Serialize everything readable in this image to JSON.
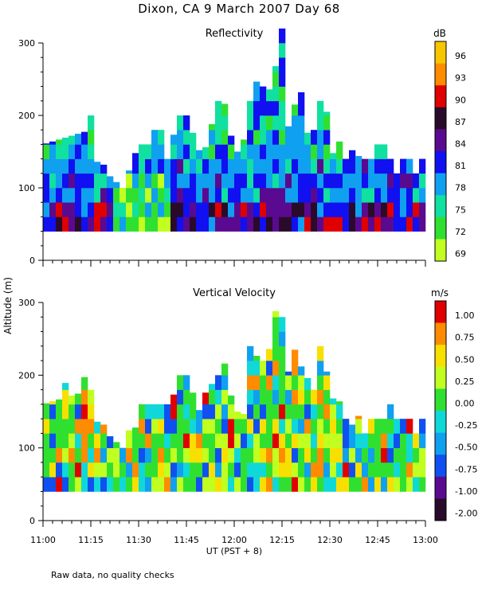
{
  "title": "Dixon, CA  9 March 2007  Day  68",
  "note": "Raw data, no quality checks",
  "chart_data": [
    {
      "type": "heatmap",
      "title": "Reflectivity",
      "ylabel": "Altitude (m)",
      "xlabel": "UT  (PST + 8)",
      "x_tick_labels": [
        "11:00",
        "11:15",
        "11:30",
        "11:45",
        "12:00",
        "12:15",
        "12:30",
        "12:45",
        "13:00"
      ],
      "x_range_minutes": [
        0,
        120
      ],
      "ylim": [
        0,
        300
      ],
      "y_ticks": [
        0,
        100,
        200,
        300
      ],
      "colorbar": {
        "unit": "dB",
        "labels": [
          "96",
          "93",
          "90",
          "87",
          "84",
          "81",
          "78",
          "75",
          "72",
          "69"
        ],
        "colors": [
          "#f7c600",
          "#ff8c00",
          "#e00000",
          "#2a0a2a",
          "#5a0a90",
          "#1010f0",
          "#10a0f0",
          "#10e0a0",
          "#30e030",
          "#c0ff20"
        ]
      },
      "echo_base_m": 40,
      "echo_top_profile": {
        "minutes": [
          0,
          15,
          20,
          25,
          30,
          40,
          43,
          45,
          50,
          55,
          60,
          62,
          65,
          68,
          70,
          75,
          76,
          80,
          85,
          88,
          90,
          95,
          100,
          110,
          120
        ],
        "top_m": [
          160,
          180,
          120,
          100,
          160,
          160,
          200,
          200,
          140,
          220,
          160,
          140,
          220,
          260,
          220,
          300,
          200,
          220,
          180,
          240,
          170,
          160,
          140,
          140,
          140
        ]
      }
    },
    {
      "type": "heatmap",
      "title": "Vertical Velocity",
      "ylabel": "Altitude (m)",
      "xlabel": "UT  (PST + 8)",
      "x_tick_labels": [
        "11:00",
        "11:15",
        "11:30",
        "11:45",
        "12:00",
        "12:15",
        "12:30",
        "12:45",
        "13:00"
      ],
      "x_range_minutes": [
        0,
        120
      ],
      "ylim": [
        0,
        300
      ],
      "y_ticks": [
        0,
        100,
        200,
        300
      ],
      "colorbar": {
        "unit": "m/s",
        "labels": [
          "1.00",
          "0.75",
          "0.50",
          "0.25",
          "0.00",
          "-0.25",
          "-0.50",
          "-0.75",
          "-1.00",
          "-2.00"
        ],
        "colors": [
          "#e00000",
          "#ff8c00",
          "#f7e000",
          "#c0ff20",
          "#30e030",
          "#10d8d8",
          "#10a0f0",
          "#1050f0",
          "#5a0a90",
          "#2a0a2a"
        ]
      },
      "echo_base_m": 40,
      "echo_top_profile": {
        "minutes": [
          0,
          15,
          20,
          25,
          30,
          40,
          43,
          45,
          50,
          55,
          60,
          62,
          65,
          68,
          70,
          75,
          76,
          80,
          85,
          88,
          90,
          95,
          100,
          110,
          120
        ],
        "top_m": [
          160,
          180,
          120,
          100,
          160,
          160,
          200,
          200,
          140,
          220,
          160,
          140,
          220,
          260,
          220,
          300,
          200,
          220,
          180,
          240,
          170,
          160,
          140,
          140,
          140
        ]
      }
    }
  ]
}
